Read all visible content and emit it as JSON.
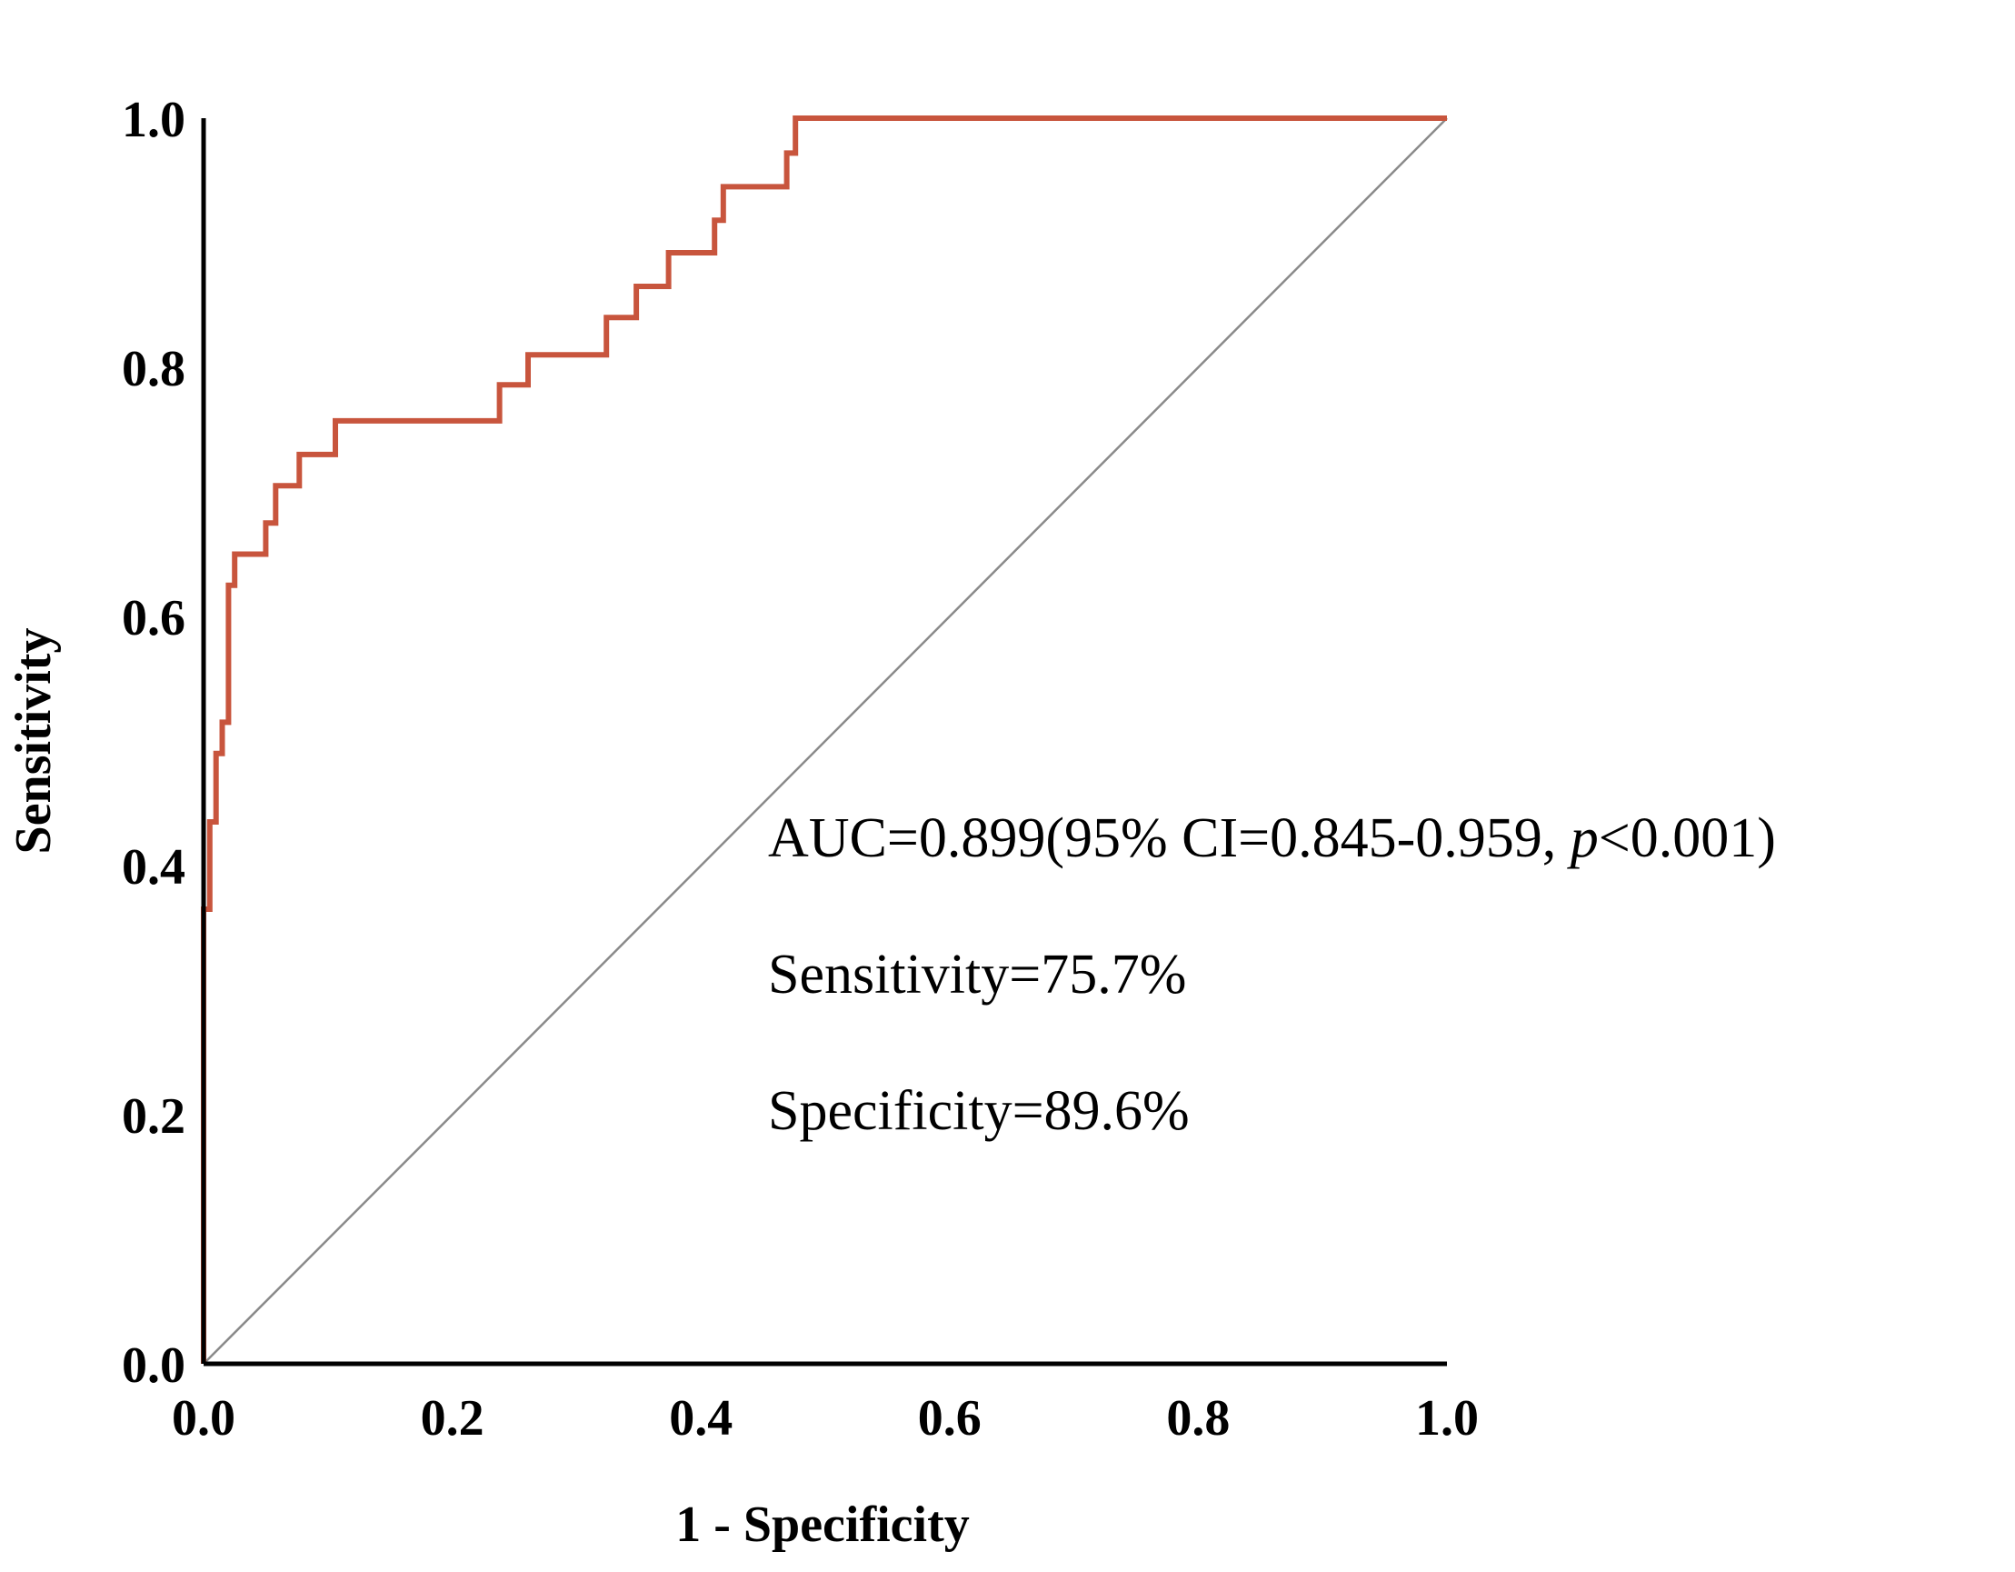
{
  "chart_data": {
    "type": "line",
    "title": "",
    "xlabel": "1 - Specificity",
    "ylabel": "Sensitivity",
    "xlim": [
      0.0,
      1.0
    ],
    "ylim": [
      0.0,
      1.0
    ],
    "grid": false,
    "x_ticks": [
      "0.0",
      "0.2",
      "0.4",
      "0.6",
      "0.8",
      "1.0"
    ],
    "y_ticks": [
      "0.0",
      "0.2",
      "0.4",
      "0.6",
      "0.8",
      "1.0"
    ],
    "colors": {
      "roc": "#c8553d",
      "reference": "#8a8a8a",
      "axis": "#000000"
    },
    "series": [
      {
        "name": "ROC curve",
        "points": [
          [
            0.0,
            0.0
          ],
          [
            0.0,
            0.365
          ],
          [
            0.005,
            0.365
          ],
          [
            0.005,
            0.435
          ],
          [
            0.01,
            0.435
          ],
          [
            0.01,
            0.49
          ],
          [
            0.015,
            0.49
          ],
          [
            0.015,
            0.515
          ],
          [
            0.02,
            0.515
          ],
          [
            0.02,
            0.625
          ],
          [
            0.025,
            0.625
          ],
          [
            0.025,
            0.65
          ],
          [
            0.05,
            0.65
          ],
          [
            0.05,
            0.675
          ],
          [
            0.058,
            0.675
          ],
          [
            0.058,
            0.705
          ],
          [
            0.077,
            0.705
          ],
          [
            0.077,
            0.73
          ],
          [
            0.106,
            0.73
          ],
          [
            0.106,
            0.757
          ],
          [
            0.238,
            0.757
          ],
          [
            0.238,
            0.786
          ],
          [
            0.261,
            0.786
          ],
          [
            0.261,
            0.81
          ],
          [
            0.324,
            0.81
          ],
          [
            0.324,
            0.84
          ],
          [
            0.348,
            0.84
          ],
          [
            0.348,
            0.865
          ],
          [
            0.374,
            0.865
          ],
          [
            0.374,
            0.892
          ],
          [
            0.411,
            0.892
          ],
          [
            0.411,
            0.918
          ],
          [
            0.418,
            0.918
          ],
          [
            0.418,
            0.945
          ],
          [
            0.469,
            0.945
          ],
          [
            0.469,
            0.972
          ],
          [
            0.476,
            0.972
          ],
          [
            0.476,
            1.0
          ],
          [
            1.0,
            1.0
          ]
        ]
      },
      {
        "name": "Reference line",
        "points": [
          [
            0.0,
            0.0
          ],
          [
            1.0,
            1.0
          ]
        ]
      }
    ],
    "annotations": {
      "auc_prefix": "AUC=0.899(95% CI=0.845-0.959, ",
      "auc_p": "p",
      "auc_suffix": "<0.001)",
      "sensitivity": "Sensitivity=75.7%",
      "specificity": "Specificity=89.6%"
    }
  }
}
